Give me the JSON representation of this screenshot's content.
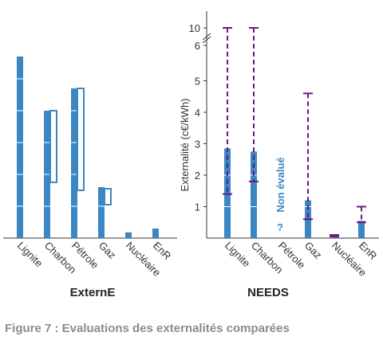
{
  "figure_caption": "Figure 7 : Evaluations des externalités comparées",
  "colors": {
    "bar": "#3a87c3",
    "range": "#6a1a80",
    "label": "#3a87c3",
    "axis": "#333333"
  },
  "chart_data": [
    {
      "type": "bar",
      "title": "ExternE",
      "categories": [
        "Lignite",
        "Charbon",
        "Pétrole",
        "Gaz",
        "Nucléaire",
        "EnR"
      ],
      "unit": "c€/kWh",
      "values": [
        5.7,
        4.0,
        4.7,
        1.6,
        0.18,
        0.3
      ],
      "ranges": [
        null,
        [
          1.75,
          4.0
        ],
        [
          1.5,
          4.7
        ],
        [
          1.05,
          1.55
        ],
        null,
        null
      ],
      "axis_shown": false
    },
    {
      "type": "bar",
      "title": "NEEDS",
      "categories": [
        "Lignite",
        "Charbon",
        "Pétrole",
        "Gaz",
        "Nucléaire",
        "EnR"
      ],
      "ylabel": "Externalité (c€/kWh)",
      "yticks": [
        "1",
        "2",
        "3",
        "4",
        "5",
        "6",
        "10"
      ],
      "axis_break": "between 6 and 10",
      "values": [
        2.85,
        2.75,
        null,
        1.2,
        0.1,
        0.55
      ],
      "ranges": [
        [
          1.4,
          10
        ],
        [
          1.8,
          10
        ],
        null,
        [
          0.6,
          4.6
        ],
        [
          0.05,
          0.1
        ],
        [
          0.5,
          1.0
        ]
      ],
      "not_evaluated": {
        "category": "Pétrole",
        "label": "Non évalué",
        "mark": "?"
      }
    }
  ]
}
